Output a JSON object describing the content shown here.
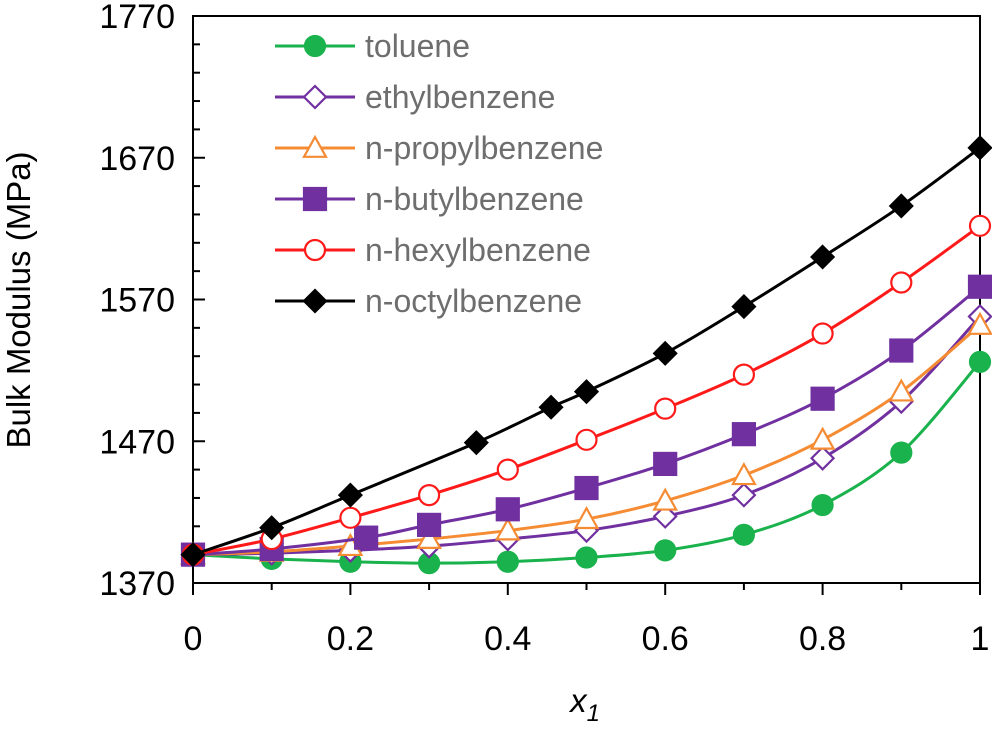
{
  "chart_data": {
    "type": "line",
    "xlabel_main": "x",
    "xlabel_sub": "1",
    "ylabel": "Bulk Modulus (MPa)",
    "xlim": [
      0,
      1
    ],
    "ylim": [
      1370,
      1770
    ],
    "x_ticks": [
      0,
      0.1,
      0.2,
      0.3,
      0.4,
      0.5,
      0.6,
      0.7,
      0.8,
      0.9,
      1
    ],
    "x_tick_labels": [
      "0",
      "0.2",
      "0.4",
      "0.6",
      "0.8",
      "1"
    ],
    "y_ticks": [
      1370,
      1470,
      1570,
      1670,
      1770
    ],
    "y_tick_labels": [
      "1370",
      "1470",
      "1570",
      "1670",
      "1770"
    ],
    "y_minor_step": 20,
    "legend_position": "top-left",
    "series": [
      {
        "name": "toluene",
        "color": "#1ab24c",
        "marker": "circle",
        "filled": true,
        "x": [
          0,
          0.1,
          0.2,
          0.3,
          0.4,
          0.5,
          0.6,
          0.7,
          0.8,
          0.9,
          1
        ],
        "y": [
          1390,
          1387,
          1385,
          1384,
          1385,
          1388,
          1393,
          1404,
          1425,
          1462,
          1526
        ]
      },
      {
        "name": "ethylbenzene",
        "color": "#7030a0",
        "marker": "diamond",
        "filled": false,
        "x": [
          0,
          0.1,
          0.2,
          0.3,
          0.4,
          0.5,
          0.6,
          0.7,
          0.8,
          0.9,
          1
        ],
        "y": [
          1390,
          1391,
          1393,
          1396,
          1401,
          1407,
          1417,
          1432,
          1458,
          1498,
          1558
        ]
      },
      {
        "name": "n-propylbenzene",
        "color": "#f58b33",
        "marker": "triangle",
        "filled": false,
        "x": [
          0,
          0.1,
          0.2,
          0.3,
          0.4,
          0.5,
          0.6,
          0.7,
          0.8,
          0.9,
          1
        ],
        "y": [
          1390,
          1392,
          1396,
          1401,
          1407,
          1415,
          1428,
          1446,
          1471,
          1505,
          1552
        ]
      },
      {
        "name": "n-butylbenzene",
        "color": "#7030a0",
        "marker": "square",
        "filled": true,
        "x": [
          0,
          0.1,
          0.22,
          0.3,
          0.4,
          0.5,
          0.6,
          0.7,
          0.8,
          0.9,
          1
        ],
        "y": [
          1390,
          1394,
          1402,
          1411,
          1422,
          1437,
          1454,
          1475,
          1500,
          1534,
          1579
        ]
      },
      {
        "name": "n-hexylbenzene",
        "color": "#ff1a1a",
        "marker": "circle",
        "filled": false,
        "x": [
          0,
          0.1,
          0.2,
          0.3,
          0.4,
          0.5,
          0.6,
          0.7,
          0.8,
          0.9,
          1
        ],
        "y": [
          1390,
          1401,
          1416,
          1432,
          1450,
          1471,
          1493,
          1517,
          1546,
          1582,
          1622
        ]
      },
      {
        "name": "n-octylbenzene",
        "color": "#000000",
        "marker": "diamond",
        "filled": true,
        "x": [
          0,
          0.1,
          0.2,
          0.36,
          0.455,
          0.5,
          0.6,
          0.7,
          0.8,
          0.9,
          1
        ],
        "y": [
          1390,
          1409,
          1432,
          1469,
          1494,
          1505,
          1532,
          1565,
          1600,
          1636,
          1677
        ]
      }
    ]
  }
}
